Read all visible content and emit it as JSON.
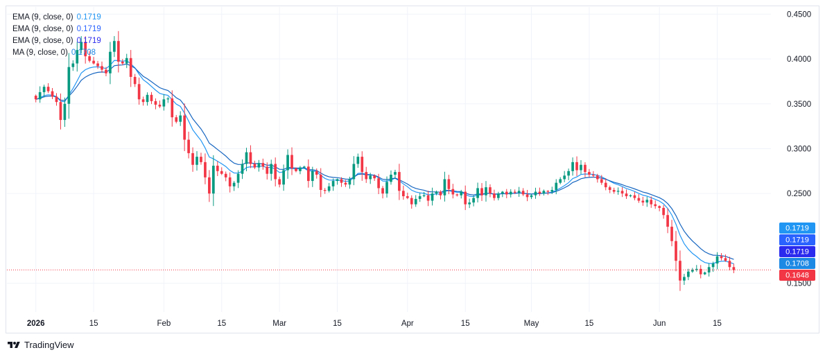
{
  "legend": [
    {
      "label": "EMA (9, close, 0)",
      "value": "0.1719",
      "color": "#2196f3"
    },
    {
      "label": "EMA (9, close, 0)",
      "value": "0.1719",
      "color": "#2962ff"
    },
    {
      "label": "EMA (9, close, 0)",
      "value": "0.1719",
      "color": "#2a2aef"
    },
    {
      "label": "MA (9, close, 0)",
      "value": "0.1708",
      "color": "#1e88e5"
    }
  ],
  "brand": {
    "name": "TradingView"
  },
  "price_badges": [
    {
      "value": "0.1719",
      "color": "#2196f3"
    },
    {
      "value": "0.1719",
      "color": "#2962ff"
    },
    {
      "value": "0.1719",
      "color": "#2a2aef"
    },
    {
      "value": "0.1708",
      "color": "#1e88e5"
    },
    {
      "value": "0.1648",
      "color": "#f23645"
    }
  ],
  "chart_data": {
    "type": "candlestick",
    "y_ticks": [
      "0.4500",
      "0.4000",
      "0.3500",
      "0.3000",
      "0.2500",
      "0.1500"
    ],
    "ylim": [
      0.118,
      0.458
    ],
    "x_ticks": [
      {
        "label": "2026",
        "day": 0,
        "bold": true
      },
      {
        "label": "15",
        "day": 14
      },
      {
        "label": "Feb",
        "day": 31
      },
      {
        "label": "15",
        "day": 45
      },
      {
        "label": "Mar",
        "day": 59
      },
      {
        "label": "15",
        "day": 73
      },
      {
        "label": "Apr",
        "day": 90
      },
      {
        "label": "15",
        "day": 104
      },
      {
        "label": "May",
        "day": 120
      },
      {
        "label": "15",
        "day": 134
      },
      {
        "label": "Jun",
        "day": 151
      },
      {
        "label": "15",
        "day": 165
      }
    ],
    "xlim_days": [
      -7,
      178
    ],
    "last_price": 0.1648,
    "colors": {
      "up": "#089981",
      "down": "#f23645",
      "ema_fast": "#2196f3",
      "ema_slow": "#1565c0",
      "last_line": "#f23645"
    },
    "grid": true,
    "closes": [
      0.355,
      0.363,
      0.369,
      0.364,
      0.358,
      0.352,
      0.332,
      0.35,
      0.391,
      0.395,
      0.41,
      0.419,
      0.403,
      0.398,
      0.395,
      0.392,
      0.388,
      0.384,
      0.408,
      0.42,
      0.397,
      0.395,
      0.401,
      0.38,
      0.372,
      0.355,
      0.352,
      0.36,
      0.353,
      0.349,
      0.347,
      0.355,
      0.356,
      0.335,
      0.33,
      0.337,
      0.31,
      0.295,
      0.282,
      0.291,
      0.285,
      0.268,
      0.25,
      0.281,
      0.275,
      0.272,
      0.268,
      0.258,
      0.262,
      0.272,
      0.283,
      0.296,
      0.283,
      0.279,
      0.284,
      0.28,
      0.272,
      0.283,
      0.266,
      0.26,
      0.276,
      0.293,
      0.278,
      0.275,
      0.279,
      0.28,
      0.264,
      0.275,
      0.271,
      0.254,
      0.253,
      0.258,
      0.264,
      0.266,
      0.262,
      0.26,
      0.266,
      0.283,
      0.291,
      0.274,
      0.266,
      0.27,
      0.267,
      0.256,
      0.25,
      0.263,
      0.271,
      0.274,
      0.253,
      0.247,
      0.245,
      0.238,
      0.244,
      0.247,
      0.248,
      0.242,
      0.25,
      0.252,
      0.248,
      0.266,
      0.255,
      0.249,
      0.248,
      0.252,
      0.238,
      0.24,
      0.245,
      0.256,
      0.248,
      0.257,
      0.25,
      0.245,
      0.25,
      0.252,
      0.249,
      0.252,
      0.251,
      0.253,
      0.249,
      0.246,
      0.248,
      0.252,
      0.25,
      0.253,
      0.252,
      0.254,
      0.262,
      0.266,
      0.27,
      0.275,
      0.285,
      0.276,
      0.282,
      0.274,
      0.271,
      0.27,
      0.266,
      0.262,
      0.257,
      0.254,
      0.252,
      0.253,
      0.25,
      0.247,
      0.248,
      0.245,
      0.242,
      0.24,
      0.243,
      0.238,
      0.236,
      0.234,
      0.226,
      0.213,
      0.197,
      0.175,
      0.153,
      0.157,
      0.163,
      0.165,
      0.166,
      0.16,
      0.162,
      0.168,
      0.172,
      0.18,
      0.178,
      0.175,
      0.168,
      0.1648
    ]
  }
}
